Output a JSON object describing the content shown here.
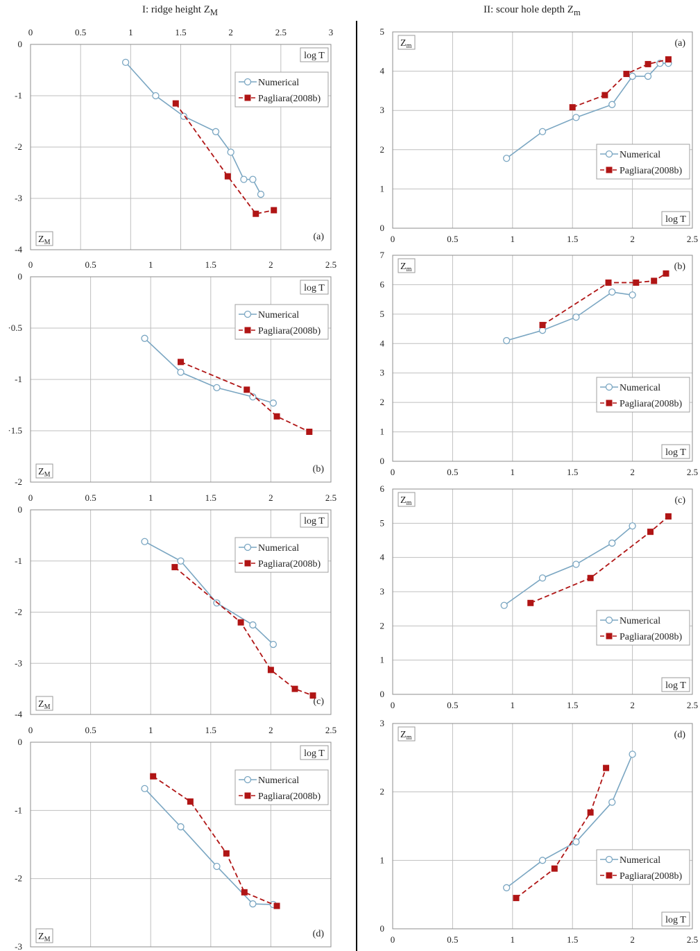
{
  "columns": [
    {
      "title": "I: ridge height Z",
      "title_sub": "M"
    },
    {
      "title": "II: scour hole depth Z",
      "title_sub": "m"
    }
  ],
  "colors": {
    "numerical": "#7aa6c2",
    "pagliara": "#b01515",
    "grid": "#bfbfbf",
    "axis": "#8c8c8c"
  },
  "chart_data": [
    {
      "type": "line",
      "column": "I",
      "panel": "(a)",
      "xlabel": "log T",
      "ylabel": "Z",
      "ylabel_sub": "M",
      "xlim": [
        0,
        3
      ],
      "ylim": [
        -4,
        0
      ],
      "xticks": [
        0,
        0.5,
        1,
        1.5,
        2,
        2.5,
        3
      ],
      "xtick_labels": [
        "0",
        "0.5",
        "1",
        "1.5",
        "2",
        "2.5",
        "3"
      ],
      "yticks": [
        0,
        -1,
        -2,
        -3,
        -4
      ],
      "ytick_labels": [
        "0",
        "-1",
        "-2",
        "-3",
        "-4"
      ],
      "xaxis_position": "top",
      "legend_position": "top-right",
      "series": [
        {
          "name": "Numerical",
          "marker": "circle",
          "style": "solid",
          "x": [
            0.95,
            1.25,
            1.53,
            1.85,
            2.0,
            2.13,
            2.22,
            2.3
          ],
          "y": [
            -0.35,
            -1.0,
            -1.4,
            -1.7,
            -2.1,
            -2.63,
            -2.63,
            -2.92
          ]
        },
        {
          "name": "Pagliara(2008b)",
          "marker": "square",
          "style": "dashed",
          "x": [
            1.45,
            1.97,
            2.25,
            2.43
          ],
          "y": [
            -1.15,
            -2.57,
            -3.3,
            -3.23
          ]
        }
      ]
    },
    {
      "type": "line",
      "column": "I",
      "panel": "(b)",
      "xlabel": "log T",
      "ylabel": "Z",
      "ylabel_sub": "M",
      "xlim": [
        0,
        2.5
      ],
      "ylim": [
        -2,
        0
      ],
      "xticks": [
        0,
        0.5,
        1,
        1.5,
        2,
        2.5
      ],
      "xtick_labels": [
        "0",
        "0.5",
        "1",
        "1.5",
        "2",
        "2.5"
      ],
      "yticks": [
        0,
        -0.5,
        -1,
        -1.5,
        -2
      ],
      "ytick_labels": [
        "0",
        "·0.5",
        "-1",
        "·1.5",
        "-2"
      ],
      "xaxis_position": "top",
      "legend_position": "top-right",
      "series": [
        {
          "name": "Numerical",
          "marker": "circle",
          "style": "solid",
          "x": [
            0.95,
            1.25,
            1.55,
            1.85,
            2.02
          ],
          "y": [
            -0.6,
            -0.93,
            -1.08,
            -1.17,
            -1.23
          ]
        },
        {
          "name": "Pagliara(2008b)",
          "marker": "square",
          "style": "dashed",
          "x": [
            1.25,
            1.8,
            2.05,
            2.32
          ],
          "y": [
            -0.83,
            -1.1,
            -1.36,
            -1.51
          ]
        }
      ]
    },
    {
      "type": "line",
      "column": "I",
      "panel": "(c)",
      "xlabel": "log T",
      "ylabel": "Z",
      "ylabel_sub": "M",
      "xlim": [
        0,
        2.5
      ],
      "ylim": [
        -4,
        0
      ],
      "xticks": [
        0,
        0.5,
        1,
        1.5,
        2,
        2.5
      ],
      "xtick_labels": [
        "0",
        "0.5",
        "1",
        "1.5",
        "2",
        "2.5"
      ],
      "yticks": [
        0,
        -1,
        -2,
        -3,
        -4
      ],
      "ytick_labels": [
        "0",
        "-1",
        "-2",
        "-3",
        "-4"
      ],
      "xaxis_position": "top",
      "legend_position": "top-right",
      "series": [
        {
          "name": "Numerical",
          "marker": "circle",
          "style": "solid",
          "x": [
            0.95,
            1.25,
            1.55,
            1.85,
            2.02
          ],
          "y": [
            -0.62,
            -1.0,
            -1.82,
            -2.25,
            -2.63
          ]
        },
        {
          "name": "Pagliara(2008b)",
          "marker": "square",
          "style": "dashed",
          "x": [
            1.2,
            1.75,
            2.0,
            2.2,
            2.35
          ],
          "y": [
            -1.12,
            -2.2,
            -3.13,
            -3.5,
            -3.63
          ]
        }
      ]
    },
    {
      "type": "line",
      "column": "I",
      "panel": "(d)",
      "xlabel": "log T",
      "ylabel": "Z",
      "ylabel_sub": "M",
      "xlim": [
        0,
        2.5
      ],
      "ylim": [
        -3,
        0
      ],
      "xticks": [
        0,
        0.5,
        1,
        1.5,
        2,
        2.5
      ],
      "xtick_labels": [
        "0",
        "0.5",
        "1",
        "1.5",
        "2",
        "2.5"
      ],
      "yticks": [
        0,
        -1,
        -2,
        -3
      ],
      "ytick_labels": [
        "0",
        "-1",
        "-2",
        "-3"
      ],
      "xaxis_position": "top",
      "legend_position": "top-right",
      "series": [
        {
          "name": "Numerical",
          "marker": "circle",
          "style": "solid",
          "x": [
            0.95,
            1.25,
            1.55,
            1.85,
            2.02
          ],
          "y": [
            -0.68,
            -1.24,
            -1.82,
            -2.37,
            -2.38
          ]
        },
        {
          "name": "Pagliara(2008b)",
          "marker": "square",
          "style": "dashed",
          "x": [
            1.02,
            1.33,
            1.63,
            1.78,
            2.05
          ],
          "y": [
            -0.5,
            -0.87,
            -1.63,
            -2.2,
            -2.4
          ]
        }
      ]
    },
    {
      "type": "line",
      "column": "II",
      "panel": "(a)",
      "xlabel": "log T",
      "ylabel": "Z",
      "ylabel_sub": "m",
      "xlim": [
        0,
        2.5
      ],
      "ylim": [
        0,
        5
      ],
      "xticks": [
        0,
        0.5,
        1,
        1.5,
        2,
        2.5
      ],
      "xtick_labels": [
        "0",
        "0.5",
        "1",
        "1.5",
        "2",
        "2.5"
      ],
      "yticks": [
        0,
        1,
        2,
        3,
        4,
        5
      ],
      "ytick_labels": [
        "0",
        "1",
        "2",
        "3",
        "4",
        "5"
      ],
      "xaxis_position": "bottom",
      "legend_position": "middle-right",
      "series": [
        {
          "name": "Numerical",
          "marker": "circle",
          "style": "solid",
          "x": [
            0.95,
            1.25,
            1.53,
            1.83,
            2.0,
            2.13,
            2.23,
            2.3
          ],
          "y": [
            1.78,
            2.46,
            2.82,
            3.15,
            3.87,
            3.87,
            4.2,
            4.2
          ]
        },
        {
          "name": "Pagliara(2008b)",
          "marker": "square",
          "style": "dashed",
          "x": [
            1.5,
            1.77,
            1.95,
            2.13,
            2.3
          ],
          "y": [
            3.08,
            3.39,
            3.93,
            4.18,
            4.3
          ]
        }
      ]
    },
    {
      "type": "line",
      "column": "II",
      "panel": "(b)",
      "xlabel": "log T",
      "ylabel": "Z",
      "ylabel_sub": "m",
      "xlim": [
        0,
        2.5
      ],
      "ylim": [
        0,
        7
      ],
      "xticks": [
        0,
        0.5,
        1,
        1.5,
        2,
        2.5
      ],
      "xtick_labels": [
        "0",
        "0.5",
        "1",
        "1.5",
        "2",
        "2.5"
      ],
      "yticks": [
        0,
        1,
        2,
        3,
        4,
        5,
        6,
        7
      ],
      "ytick_labels": [
        "0",
        "1",
        "2",
        "3",
        "4",
        "5",
        "6",
        "7"
      ],
      "xaxis_position": "bottom",
      "legend_position": "middle-right",
      "series": [
        {
          "name": "Numerical",
          "marker": "circle",
          "style": "solid",
          "x": [
            0.95,
            1.25,
            1.53,
            1.83,
            2.0
          ],
          "y": [
            4.1,
            4.45,
            4.9,
            5.75,
            5.65
          ]
        },
        {
          "name": "Pagliara(2008b)",
          "marker": "square",
          "style": "dashed",
          "x": [
            1.25,
            1.8,
            2.03,
            2.18,
            2.28
          ],
          "y": [
            4.63,
            6.07,
            6.07,
            6.13,
            6.38
          ]
        }
      ]
    },
    {
      "type": "line",
      "column": "II",
      "panel": "(c)",
      "xlabel": "log T",
      "ylabel": "Z",
      "ylabel_sub": "m",
      "xlim": [
        0,
        2.5
      ],
      "ylim": [
        0,
        6
      ],
      "xticks": [
        0,
        0.5,
        1,
        1.5,
        2,
        2.5
      ],
      "xtick_labels": [
        "0",
        "0.5",
        "1",
        "1.5",
        "2",
        "2.5"
      ],
      "yticks": [
        0,
        1,
        2,
        3,
        4,
        5,
        6
      ],
      "ytick_labels": [
        "0",
        "1",
        "2",
        "3",
        "4",
        "5",
        "6"
      ],
      "xaxis_position": "bottom",
      "legend_position": "middle-right",
      "series": [
        {
          "name": "Numerical",
          "marker": "circle",
          "style": "solid",
          "x": [
            0.93,
            1.25,
            1.53,
            1.83,
            2.0
          ],
          "y": [
            2.6,
            3.4,
            3.8,
            4.42,
            4.92
          ]
        },
        {
          "name": "Pagliara(2008b)",
          "marker": "square",
          "style": "dashed",
          "x": [
            1.15,
            1.65,
            2.15,
            2.3
          ],
          "y": [
            2.67,
            3.4,
            4.75,
            5.2
          ]
        }
      ]
    },
    {
      "type": "line",
      "column": "II",
      "panel": "(d)",
      "xlabel": "log T",
      "ylabel": "Z",
      "ylabel_sub": "m",
      "xlim": [
        0,
        2.5
      ],
      "ylim": [
        0,
        3
      ],
      "xticks": [
        0,
        0.5,
        1,
        1.5,
        2,
        2.5
      ],
      "xtick_labels": [
        "0",
        "0.5",
        "1",
        "1.5",
        "2",
        "2.5"
      ],
      "yticks": [
        0,
        1,
        2,
        3
      ],
      "ytick_labels": [
        "0",
        "1",
        "2",
        "3"
      ],
      "xaxis_position": "bottom",
      "legend_position": "lower-right",
      "series": [
        {
          "name": "Numerical",
          "marker": "circle",
          "style": "solid",
          "x": [
            0.95,
            1.25,
            1.53,
            1.83,
            2.0
          ],
          "y": [
            0.6,
            1.0,
            1.27,
            1.85,
            2.55
          ]
        },
        {
          "name": "Pagliara(2008b)",
          "marker": "square",
          "style": "dashed",
          "x": [
            1.03,
            1.35,
            1.65,
            1.78
          ],
          "y": [
            0.45,
            0.88,
            1.7,
            2.35
          ]
        }
      ]
    }
  ]
}
